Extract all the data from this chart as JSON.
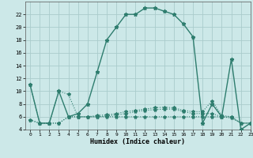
{
  "xlabel": "Humidex (Indice chaleur)",
  "x": [
    0,
    1,
    2,
    3,
    4,
    5,
    6,
    7,
    8,
    9,
    10,
    11,
    12,
    13,
    14,
    15,
    16,
    17,
    18,
    19,
    20,
    21,
    22,
    23
  ],
  "line_main": [
    11,
    5,
    5,
    10,
    6,
    6.5,
    8,
    13,
    18,
    20,
    22,
    22,
    23,
    23,
    22.5,
    22,
    20.5,
    18.5,
    5,
    8,
    6,
    15,
    4,
    5
  ],
  "line_flat1": [
    11,
    5,
    5,
    10,
    9.5,
    6,
    6,
    6,
    6,
    6,
    6,
    6,
    6,
    6,
    6,
    6,
    6,
    6,
    6,
    6,
    6,
    6,
    5,
    5
  ],
  "line_flat2": [
    5.5,
    5,
    5,
    5,
    6,
    6,
    6,
    6.2,
    6.3,
    6.5,
    6.8,
    7.0,
    7.2,
    7.4,
    7.5,
    7.4,
    7.0,
    6.8,
    6.8,
    8.5,
    6.2,
    6.0,
    5,
    5
  ],
  "line_flat3": [
    5.5,
    5,
    5,
    5,
    6,
    6,
    6,
    6.0,
    6.1,
    6.3,
    6.5,
    6.8,
    7.0,
    7.1,
    7.2,
    7.2,
    6.8,
    6.5,
    6.5,
    6.5,
    6.0,
    5.8,
    5,
    5
  ],
  "ylim": [
    4,
    24
  ],
  "xlim": [
    -0.5,
    23
  ],
  "yticks": [
    4,
    6,
    8,
    10,
    12,
    14,
    16,
    18,
    20,
    22
  ],
  "xticks": [
    0,
    1,
    2,
    3,
    4,
    5,
    6,
    7,
    8,
    9,
    10,
    11,
    12,
    13,
    14,
    15,
    16,
    17,
    18,
    19,
    20,
    21,
    22,
    23
  ],
  "line_color": "#2e7d6e",
  "bg_color": "#cce8e8",
  "grid_color": "#aacccc"
}
